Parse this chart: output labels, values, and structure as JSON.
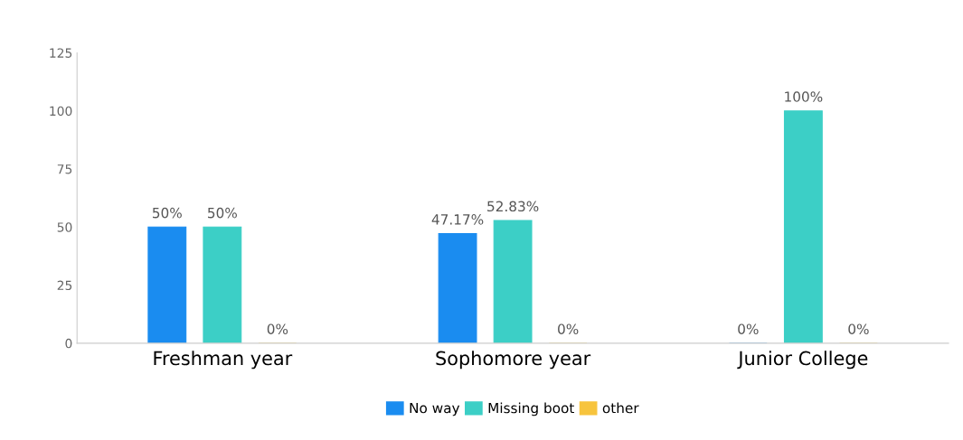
{
  "chart_data": {
    "type": "bar",
    "categories": [
      "Freshman year",
      "Sophomore year",
      "Junior College"
    ],
    "series": [
      {
        "name": "No way",
        "color": "#1a8cf0",
        "values": [
          50,
          47.17,
          0
        ],
        "value_labels": [
          "50%",
          "47.17%",
          "0%"
        ]
      },
      {
        "name": "Missing boot",
        "color": "#3ccfc6",
        "values": [
          50,
          52.83,
          100
        ],
        "value_labels": [
          "50%",
          "52.83%",
          "100%"
        ]
      },
      {
        "name": "other",
        "color": "#f7c43d",
        "values": [
          0,
          0,
          0
        ],
        "value_labels": [
          "0%",
          "0%",
          "0%"
        ]
      }
    ],
    "ylim": [
      0,
      125
    ],
    "yticks": [
      0,
      25,
      50,
      75,
      100,
      125
    ],
    "grid": false,
    "legend": "bottom"
  }
}
